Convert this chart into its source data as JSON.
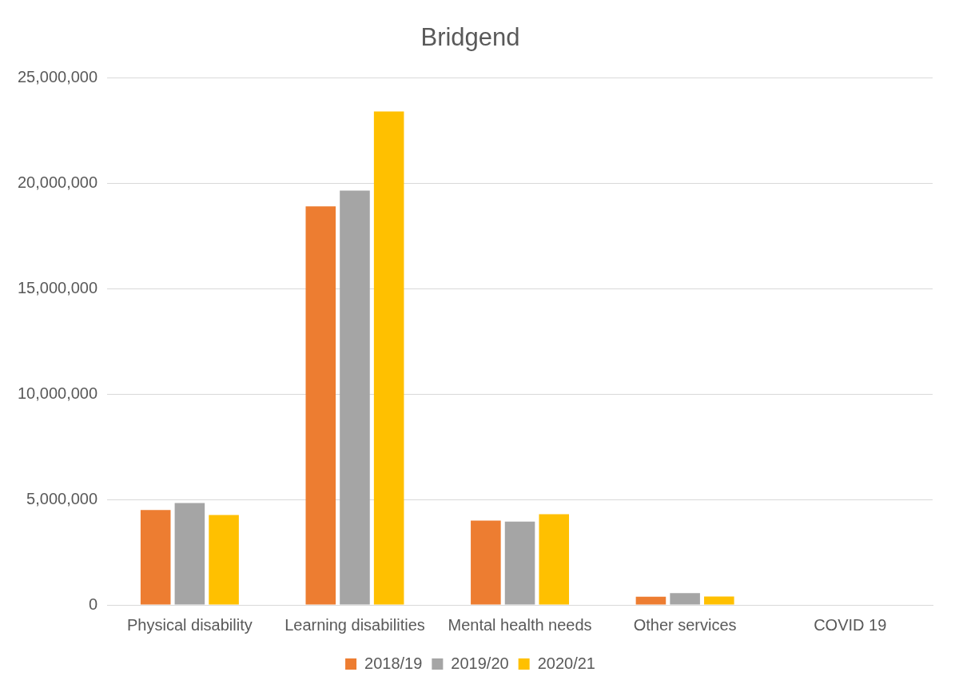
{
  "chart_data": {
    "type": "bar",
    "title": "Bridgend",
    "categories": [
      "Physical disability",
      "Learning disabilities",
      "Mental health needs",
      "Other services",
      "COVID 19"
    ],
    "series": [
      {
        "name": "2018/19",
        "color": "#ed7d31",
        "values": [
          4500000,
          18900000,
          4000000,
          390000,
          0
        ]
      },
      {
        "name": "2019/20",
        "color": "#a5a5a5",
        "values": [
          4830000,
          19650000,
          3950000,
          560000,
          0
        ]
      },
      {
        "name": "2020/21",
        "color": "#ffc000",
        "values": [
          4260000,
          23400000,
          4300000,
          400000,
          0
        ]
      }
    ],
    "ylim": [
      0,
      25000000
    ],
    "yticks": [
      {
        "value": 0,
        "label": "0"
      },
      {
        "value": 5000000,
        "label": "5,000,000"
      },
      {
        "value": 10000000,
        "label": "10,000,000"
      },
      {
        "value": 15000000,
        "label": "15,000,000"
      },
      {
        "value": 20000000,
        "label": "20,000,000"
      },
      {
        "value": 25000000,
        "label": "25,000,000"
      }
    ],
    "grid": "y",
    "legend": "bottom"
  }
}
